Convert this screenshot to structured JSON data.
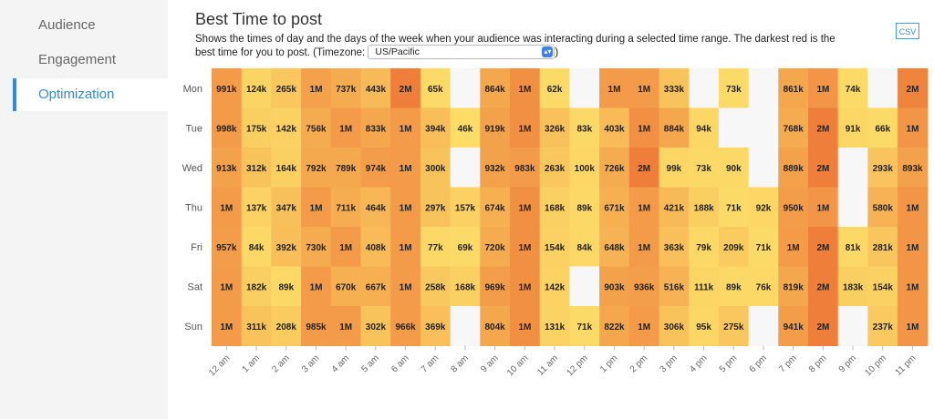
{
  "sidebar": {
    "items": [
      {
        "label": "Audience"
      },
      {
        "label": "Engagement"
      },
      {
        "label": "Optimization"
      }
    ]
  },
  "header": {
    "title": "Best Time to post",
    "description": "Shows the times of day and the days of the week when your audience was interacting during a selected time range. The darkest red is the best time for you to post. (Timezone:",
    "description_end": ")",
    "timezone": "US/Pacific",
    "csv_label": "CSV"
  },
  "colors": {
    "accent": "#2f8dd6",
    "scale_low": "#fde06a",
    "scale_high": "#ec6d32",
    "empty": "#f7f7f7"
  },
  "chart_data": {
    "type": "heatmap",
    "title": "",
    "x_categories": [
      "12 am",
      "1 am",
      "2 am",
      "3 am",
      "4 am",
      "5 am",
      "6 am",
      "7 am",
      "8 am",
      "9 am",
      "10 am",
      "11 am",
      "12 pm",
      "1 pm",
      "2 pm",
      "3 pm",
      "4 pm",
      "5 pm",
      "6 pm",
      "7 pm",
      "8 pm",
      "9 pm",
      "10 pm",
      "11 pm"
    ],
    "y_categories": [
      "Mon",
      "Tue",
      "Wed",
      "Thu",
      "Fri",
      "Sat",
      "Sun"
    ],
    "labels": [
      [
        "991k",
        "124k",
        "265k",
        "1M",
        "737k",
        "443k",
        "2M",
        "65k",
        "",
        "864k",
        "1M",
        "62k",
        "",
        "1M",
        "1M",
        "333k",
        "",
        "73k",
        "",
        "861k",
        "1M",
        "74k",
        "",
        "2M"
      ],
      [
        "998k",
        "175k",
        "142k",
        "756k",
        "1M",
        "833k",
        "1M",
        "394k",
        "46k",
        "919k",
        "1M",
        "326k",
        "83k",
        "403k",
        "1M",
        "884k",
        "94k",
        "",
        "",
        "768k",
        "2M",
        "91k",
        "66k",
        "1M"
      ],
      [
        "913k",
        "312k",
        "164k",
        "792k",
        "789k",
        "974k",
        "1M",
        "300k",
        "",
        "932k",
        "983k",
        "263k",
        "100k",
        "726k",
        "2M",
        "99k",
        "73k",
        "90k",
        "",
        "889k",
        "2M",
        "",
        "293k",
        "893k"
      ],
      [
        "1M",
        "137k",
        "347k",
        "1M",
        "711k",
        "464k",
        "1M",
        "297k",
        "157k",
        "674k",
        "1M",
        "168k",
        "89k",
        "671k",
        "1M",
        "421k",
        "188k",
        "71k",
        "92k",
        "950k",
        "1M",
        "",
        "580k",
        "1M"
      ],
      [
        "957k",
        "84k",
        "392k",
        "730k",
        "1M",
        "408k",
        "1M",
        "77k",
        "69k",
        "720k",
        "1M",
        "154k",
        "84k",
        "648k",
        "1M",
        "363k",
        "79k",
        "209k",
        "71k",
        "1M",
        "2M",
        "81k",
        "281k",
        "1M"
      ],
      [
        "1M",
        "182k",
        "89k",
        "1M",
        "670k",
        "667k",
        "1M",
        "258k",
        "168k",
        "969k",
        "1M",
        "142k",
        "",
        "903k",
        "936k",
        "516k",
        "111k",
        "89k",
        "76k",
        "819k",
        "2M",
        "183k",
        "154k",
        "1M"
      ],
      [
        "1M",
        "311k",
        "208k",
        "985k",
        "1M",
        "302k",
        "966k",
        "369k",
        "",
        "804k",
        "1M",
        "131k",
        "71k",
        "822k",
        "1M",
        "306k",
        "95k",
        "275k",
        "",
        "941k",
        "2M",
        "",
        "237k",
        "1M"
      ]
    ],
    "color_intensity": [
      [
        0.6,
        0.1,
        0.22,
        0.55,
        0.45,
        0.33,
        0.85,
        0.05,
        null,
        0.5,
        0.7,
        0.05,
        null,
        0.6,
        0.6,
        0.25,
        null,
        0.05,
        null,
        0.5,
        0.65,
        0.05,
        null,
        0.8
      ],
      [
        0.6,
        0.15,
        0.13,
        0.45,
        0.6,
        0.5,
        0.6,
        0.3,
        0.03,
        0.55,
        0.7,
        0.27,
        0.06,
        0.32,
        0.7,
        0.5,
        0.08,
        null,
        null,
        0.45,
        0.85,
        0.08,
        0.05,
        0.65
      ],
      [
        0.55,
        0.25,
        0.14,
        0.48,
        0.48,
        0.58,
        0.6,
        0.25,
        null,
        0.55,
        0.6,
        0.22,
        0.08,
        0.45,
        0.85,
        0.08,
        0.06,
        0.07,
        null,
        0.55,
        0.85,
        null,
        0.24,
        0.55
      ],
      [
        0.6,
        0.12,
        0.28,
        0.6,
        0.44,
        0.36,
        0.6,
        0.25,
        0.13,
        0.42,
        0.7,
        0.14,
        0.07,
        0.42,
        0.6,
        0.33,
        0.15,
        0.05,
        0.08,
        0.58,
        0.65,
        null,
        0.4,
        0.65
      ],
      [
        0.58,
        0.07,
        0.3,
        0.45,
        0.6,
        0.32,
        0.6,
        0.06,
        0.05,
        0.45,
        0.7,
        0.13,
        0.07,
        0.4,
        0.6,
        0.29,
        0.06,
        0.17,
        0.05,
        0.6,
        0.85,
        0.06,
        0.23,
        0.65
      ],
      [
        0.6,
        0.15,
        0.07,
        0.6,
        0.42,
        0.42,
        0.6,
        0.21,
        0.14,
        0.58,
        0.7,
        0.12,
        null,
        0.55,
        0.57,
        0.4,
        0.09,
        0.07,
        0.06,
        0.5,
        0.85,
        0.15,
        0.13,
        0.65
      ],
      [
        0.6,
        0.25,
        0.17,
        0.6,
        0.6,
        0.25,
        0.6,
        0.29,
        null,
        0.5,
        0.7,
        0.11,
        0.05,
        0.5,
        0.6,
        0.25,
        0.08,
        0.22,
        null,
        0.58,
        0.85,
        null,
        0.2,
        0.65
      ]
    ]
  }
}
